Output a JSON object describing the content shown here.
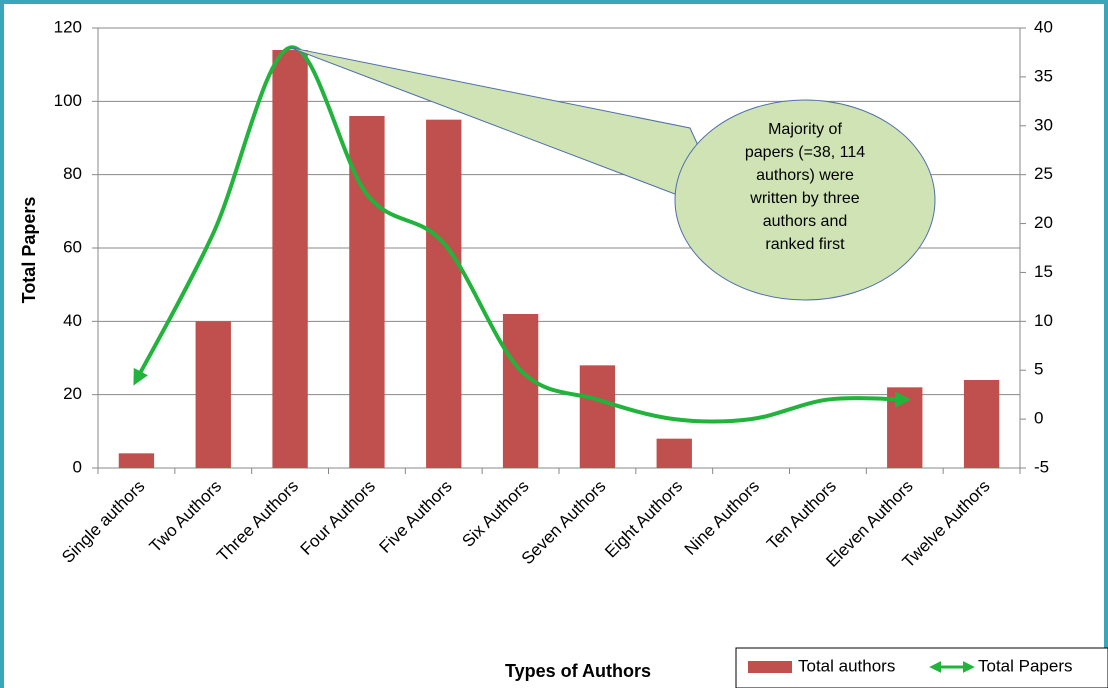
{
  "chart_data": {
    "type": "bar_line",
    "x_label": "Types of Authors",
    "y_label": "Total Papers",
    "categories": [
      "Single authors",
      "Two Authors",
      "Three Authors",
      "Four Authors",
      "Five Authors",
      "Six Authors",
      "Seven Authors",
      "Eight Authors",
      "Nine Authors",
      "Ten Authors",
      "Eleven Authors",
      "Twelve Authors"
    ],
    "series": [
      {
        "name": "Total authors",
        "color": "#c0504d",
        "type": "bar",
        "values": [
          4,
          40,
          114,
          96,
          95,
          42,
          28,
          8,
          0,
          0,
          22,
          24
        ]
      },
      {
        "name": "Total Papers",
        "color": "#22b33c",
        "type": "line",
        "axis": "y2",
        "values": [
          4,
          19,
          38,
          23,
          18,
          5,
          2,
          0,
          0,
          2,
          2,
          null
        ]
      }
    ],
    "ylim": [
      0,
      120
    ],
    "yticks": [
      0,
      20,
      40,
      60,
      80,
      100,
      120
    ],
    "y2lim": [
      -5,
      40
    ],
    "y2ticks": [
      -5,
      0,
      5,
      10,
      15,
      20,
      25,
      30,
      35,
      40
    ],
    "grid": true,
    "annotation": [
      "Majority of",
      "papers (=38, 114",
      "authors) were",
      "written by three",
      "authors and",
      "ranked first"
    ]
  }
}
